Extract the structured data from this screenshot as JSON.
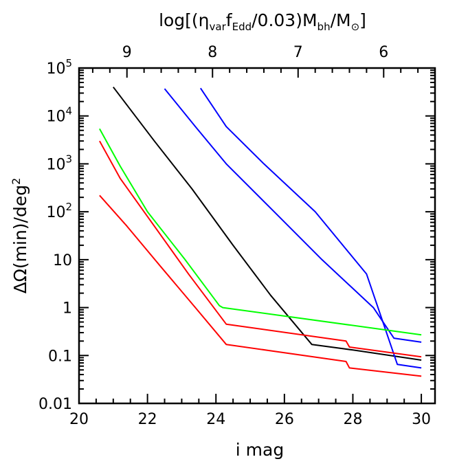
{
  "chart_data": {
    "type": "line",
    "xlabel": "i mag",
    "ylabel_parts": {
      "delta": "ΔΩ(min)/deg",
      "sup": "2"
    },
    "top_label_parts": {
      "a": "log[(η",
      "a_sub": "var",
      "b": "f",
      "b_sub": "Edd",
      "c": "/0.03)M",
      "c_sub": "bh",
      "d": "/M",
      "d_sub": "⊙",
      "e": "]"
    },
    "xlim": [
      20,
      30.4
    ],
    "ylim_log10": [
      -2,
      5
    ],
    "y_scale": "log",
    "grid": false,
    "x_ticks": [
      {
        "value": 20,
        "label": "20"
      },
      {
        "value": 22,
        "label": "22"
      },
      {
        "value": 24,
        "label": "24"
      },
      {
        "value": 26,
        "label": "26"
      },
      {
        "value": 28,
        "label": "28"
      },
      {
        "value": 30,
        "label": "30"
      }
    ],
    "y_ticks": [
      {
        "value": 0.01,
        "label": "0.01"
      },
      {
        "value": 0.1,
        "label": "0.1"
      },
      {
        "value": 1,
        "label": "1"
      },
      {
        "value": 10,
        "label": "10"
      },
      {
        "value": 100,
        "label_base": "10",
        "label_sup": "2"
      },
      {
        "value": 1000,
        "label_base": "10",
        "label_sup": "3"
      },
      {
        "value": 10000,
        "label_base": "10",
        "label_sup": "4"
      },
      {
        "value": 100000,
        "label_base": "10",
        "label_sup": "5"
      }
    ],
    "top_ticks": [
      {
        "i_mag": 21.4,
        "label": "9"
      },
      {
        "i_mag": 23.9,
        "label": "8"
      },
      {
        "i_mag": 26.4,
        "label": "7"
      },
      {
        "i_mag": 28.9,
        "label": "6"
      }
    ],
    "series": [
      {
        "color": "#000000",
        "points": [
          [
            21.0,
            40000
          ],
          [
            22.2,
            3000
          ],
          [
            23.3,
            300
          ],
          [
            24.5,
            20
          ],
          [
            25.6,
            1.8
          ],
          [
            26.8,
            0.17
          ],
          [
            28.0,
            0.13
          ],
          [
            30.0,
            0.08
          ]
        ]
      },
      {
        "color": "#0000ff",
        "points": [
          [
            22.5,
            37000
          ],
          [
            23.4,
            6000
          ],
          [
            24.3,
            1000
          ],
          [
            25.7,
            100
          ],
          [
            27.1,
            10
          ],
          [
            28.6,
            1.0
          ],
          [
            29.2,
            0.23
          ],
          [
            30.0,
            0.19
          ]
        ]
      },
      {
        "color": "#0000ff",
        "points": [
          [
            23.55,
            38000
          ],
          [
            24.3,
            6000
          ],
          [
            25.4,
            1000
          ],
          [
            26.9,
            100
          ],
          [
            28.4,
            5
          ],
          [
            29.3,
            0.065
          ],
          [
            30.0,
            0.055
          ]
        ]
      },
      {
        "color": "#00ff00",
        "points": [
          [
            20.6,
            5400
          ],
          [
            21.2,
            900
          ],
          [
            22.0,
            100
          ],
          [
            23.1,
            10
          ],
          [
            24.1,
            1.1
          ],
          [
            24.2,
            1.0
          ],
          [
            30.0,
            0.27
          ]
        ]
      },
      {
        "color": "#ff0000",
        "points": [
          [
            20.6,
            3000
          ],
          [
            21.2,
            500
          ],
          [
            22.2,
            50
          ],
          [
            23.2,
            5
          ],
          [
            24.3,
            0.45
          ],
          [
            27.8,
            0.2
          ],
          [
            27.9,
            0.15
          ],
          [
            30.0,
            0.094
          ]
        ]
      },
      {
        "color": "#ff0000",
        "points": [
          [
            20.6,
            220
          ],
          [
            21.4,
            50
          ],
          [
            22.4,
            7
          ],
          [
            23.4,
            1
          ],
          [
            24.3,
            0.17
          ],
          [
            27.8,
            0.075
          ],
          [
            27.9,
            0.055
          ],
          [
            30.0,
            0.037
          ]
        ]
      }
    ]
  }
}
